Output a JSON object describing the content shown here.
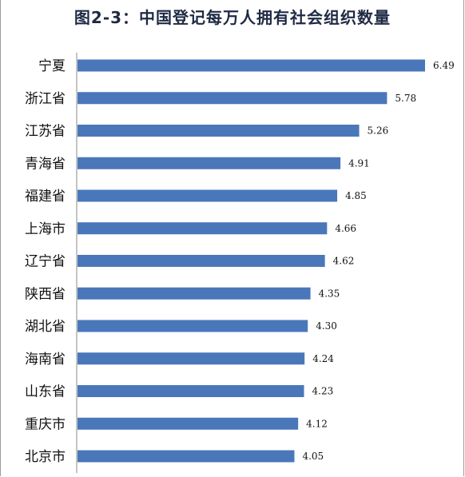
{
  "chart_data": {
    "type": "bar",
    "orientation": "horizontal",
    "title": "图2-3：中国登记每万人拥有社会组织数量",
    "categories": [
      "宁夏",
      "浙江省",
      "江苏省",
      "青海省",
      "福建省",
      "上海市",
      "辽宁省",
      "陕西省",
      "湖北省",
      "海南省",
      "山东省",
      "重庆市",
      "北京市"
    ],
    "values": [
      6.49,
      5.78,
      5.26,
      4.91,
      4.85,
      4.66,
      4.62,
      4.35,
      4.3,
      4.24,
      4.23,
      4.12,
      4.05
    ],
    "value_labels": [
      "6.49",
      "5.78",
      "5.26",
      "4.91",
      "4.85",
      "4.66",
      "4.62",
      "4.35",
      "4.30",
      "4.24",
      "4.23",
      "4.12",
      "4.05"
    ],
    "xlim": [
      0,
      6.49
    ],
    "grid": false,
    "legend": "none",
    "bar_color": "#4a77ba"
  }
}
